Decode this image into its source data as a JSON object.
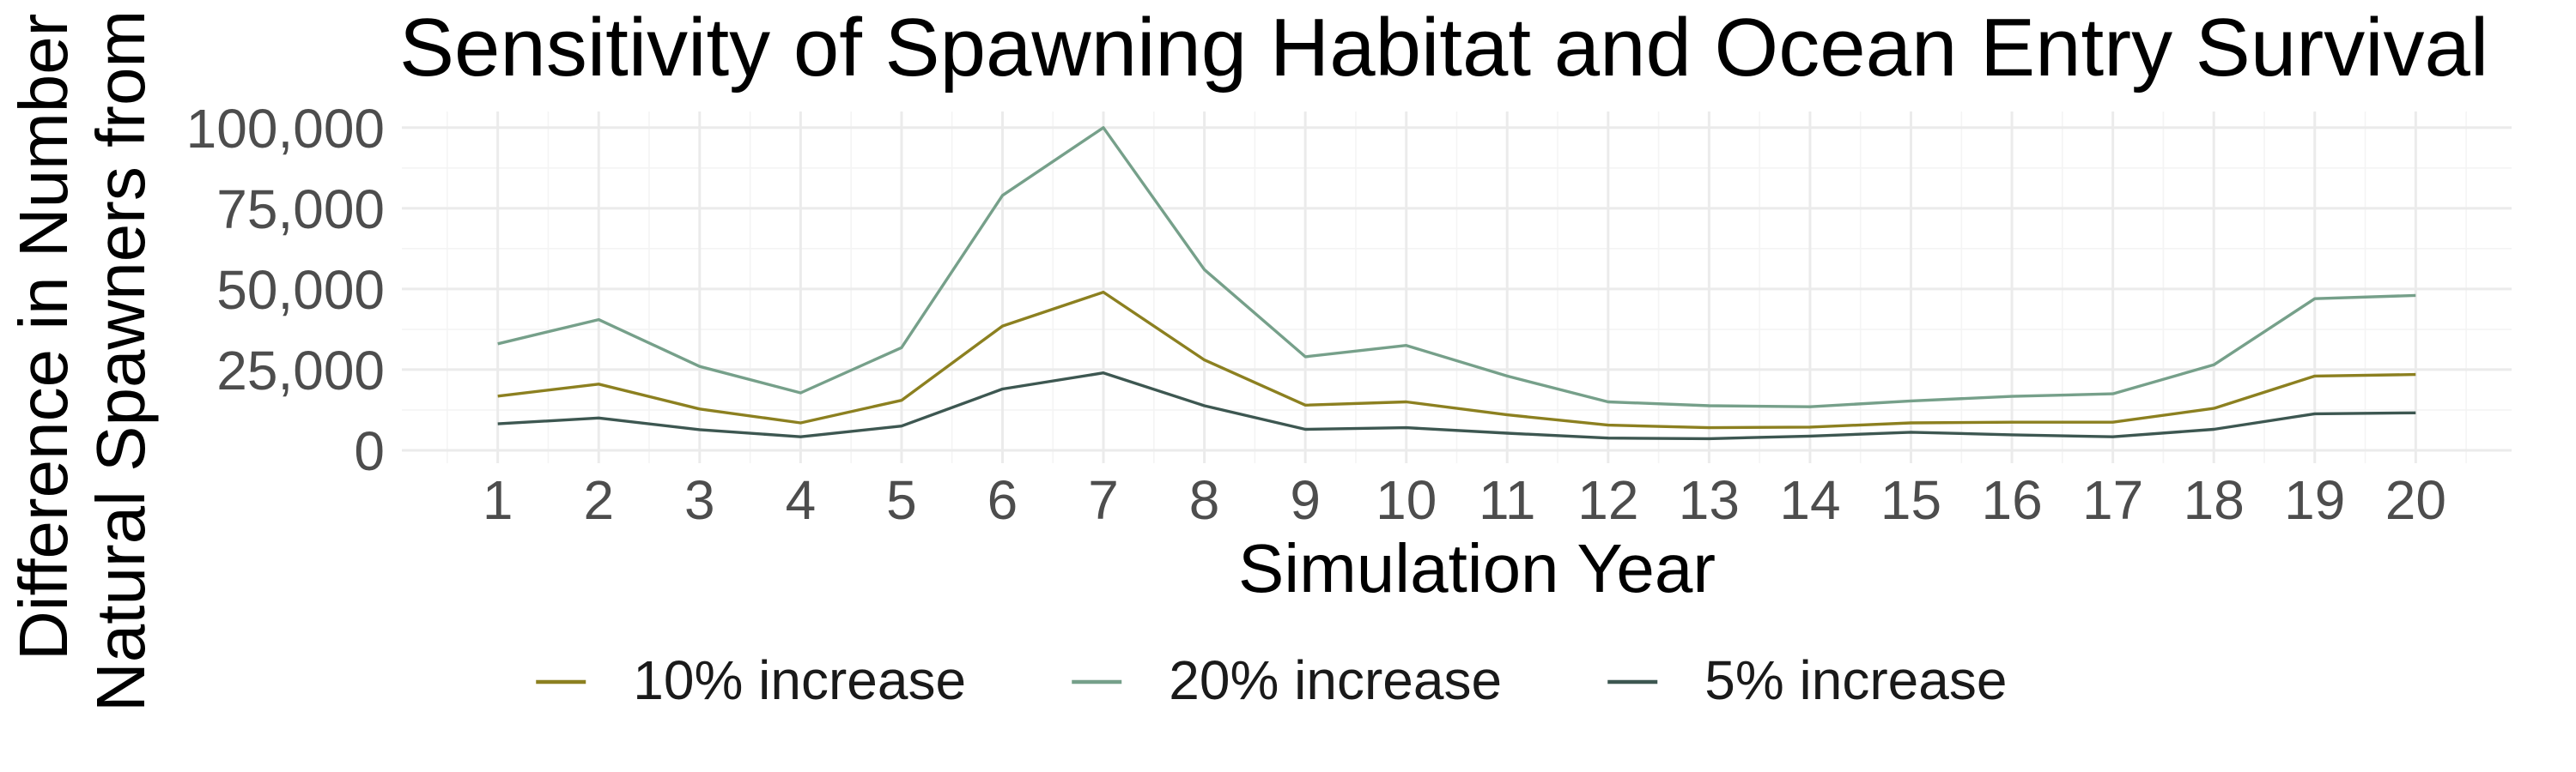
{
  "chart_data": {
    "type": "line",
    "title": "Sensitivity of Spawning Habitat and Ocean Entry Survival",
    "xlabel": "Simulation Year",
    "ylabel_lines": [
      "Difference in Number of",
      "Natural Spawners from"
    ],
    "x": [
      1,
      2,
      3,
      4,
      5,
      6,
      7,
      8,
      9,
      10,
      11,
      12,
      13,
      14,
      15,
      16,
      17,
      18,
      19,
      20
    ],
    "x_tick_labels": [
      "1",
      "2",
      "3",
      "4",
      "5",
      "6",
      "7",
      "8",
      "9",
      "10",
      "11",
      "12",
      "13",
      "14",
      "15",
      "16",
      "17",
      "18",
      "19",
      "20"
    ],
    "xlim": [
      0.05,
      20.95
    ],
    "y_ticks": [
      0,
      25000,
      50000,
      75000,
      100000
    ],
    "y_tick_labels": [
      "0",
      "25,000",
      "50,000",
      "75,000",
      "100,000"
    ],
    "ylim": [
      -4000,
      105000
    ],
    "grid": true,
    "legend_position": "bottom",
    "series": [
      {
        "name": "10% increase",
        "color": "#8c8020",
        "values": [
          16800,
          20500,
          12800,
          8500,
          15500,
          38500,
          49000,
          28000,
          14000,
          15000,
          11000,
          7800,
          7000,
          7200,
          8500,
          8700,
          8700,
          13000,
          23000,
          23500
        ]
      },
      {
        "name": "20% increase",
        "color": "#76a08a",
        "values": [
          33000,
          40500,
          26000,
          17800,
          31800,
          79000,
          100000,
          56000,
          29000,
          32500,
          23000,
          15000,
          13800,
          13500,
          15300,
          16700,
          17500,
          26500,
          47000,
          48000
        ]
      },
      {
        "name": "5% increase",
        "color": "#3d5751",
        "values": [
          8200,
          10000,
          6400,
          4200,
          7500,
          19000,
          24000,
          13800,
          6500,
          7000,
          5300,
          3800,
          3600,
          4400,
          5600,
          4800,
          4200,
          6500,
          11300,
          11600
        ]
      }
    ]
  }
}
